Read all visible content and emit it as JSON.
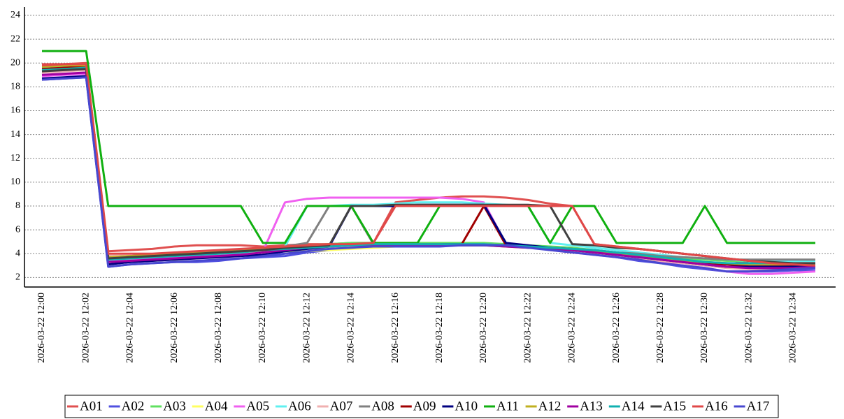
{
  "chart_data": {
    "type": "line",
    "categories": [
      "2026-03-22 12:00",
      null,
      "2026-03-22 12:02",
      null,
      "2026-03-22 12:04",
      null,
      "2026-03-22 12:06",
      null,
      "2026-03-22 12:08",
      null,
      "2026-03-22 12:10",
      null,
      "2026-03-22 12:12",
      null,
      "2026-03-22 12:14",
      null,
      "2026-03-22 12:16",
      null,
      "2026-03-22 12:18",
      null,
      "2026-03-22 12:20",
      null,
      "2026-03-22 12:22",
      null,
      "2026-03-22 12:24",
      null,
      "2026-03-22 12:26",
      null,
      "2026-03-22 12:28",
      null,
      "2026-03-22 12:30",
      null,
      "2026-03-22 12:32",
      null,
      "2026-03-22 12:34",
      null
    ],
    "ylim": [
      1.2,
      24.7
    ],
    "yticks": [
      2,
      4,
      6,
      8,
      10,
      12,
      14,
      16,
      18,
      20,
      22,
      24
    ],
    "grid": true,
    "series": [
      {
        "name": "A01",
        "color": "#e05050",
        "values": [
          19.9,
          19.9,
          20.0,
          4.2,
          4.3,
          4.4,
          4.6,
          4.7,
          4.7,
          4.7,
          4.6,
          4.7,
          4.8,
          4.8,
          4.9,
          4.9,
          8.3,
          8.5,
          8.7,
          8.8,
          8.8,
          8.7,
          8.5,
          8.2,
          8.0,
          4.8,
          4.6,
          4.4,
          4.2,
          4.0,
          3.8,
          3.5,
          3.2,
          3.1,
          3.1,
          3.1
        ]
      },
      {
        "name": "A02",
        "color": "#5050e0",
        "values": [
          18.6,
          18.7,
          18.8,
          2.9,
          3.1,
          3.2,
          3.3,
          3.3,
          3.4,
          3.6,
          3.7,
          3.8,
          4.1,
          4.3,
          4.5,
          4.6,
          4.6,
          4.6,
          4.7,
          4.7,
          4.7,
          4.7,
          4.6,
          4.4,
          4.2,
          4.0,
          3.7,
          3.4,
          3.2,
          2.9,
          2.7,
          2.5,
          2.5,
          2.5,
          2.6,
          2.6
        ]
      },
      {
        "name": "A03",
        "color": "#60e060",
        "values": [
          19.6,
          19.7,
          19.8,
          3.7,
          3.8,
          3.9,
          4.0,
          4.1,
          4.2,
          4.3,
          4.4,
          4.6,
          4.7,
          4.8,
          4.9,
          4.9,
          4.9,
          4.9,
          4.9,
          4.9,
          4.9,
          4.8,
          4.7,
          4.6,
          4.5,
          4.3,
          4.1,
          3.9,
          3.8,
          3.6,
          3.5,
          3.4,
          3.4,
          3.4,
          3.4,
          3.4
        ]
      },
      {
        "name": "A04",
        "color": "#ffff60",
        "values": [
          19.5,
          19.6,
          19.7,
          3.3,
          3.4,
          3.5,
          3.5,
          3.6,
          3.8,
          4.0,
          4.1,
          4.2,
          4.2,
          4.3,
          4.4,
          4.5,
          4.6,
          4.7,
          4.7,
          4.8,
          4.8,
          4.7,
          4.6,
          4.5,
          4.4,
          4.2,
          4.0,
          3.8,
          3.6,
          3.4,
          3.2,
          3.1,
          3.0,
          3.0,
          3.0,
          3.0
        ]
      },
      {
        "name": "A05",
        "color": "#f060f0",
        "values": [
          18.9,
          19.0,
          19.1,
          3.4,
          3.5,
          3.6,
          3.7,
          3.8,
          3.9,
          4.0,
          4.2,
          8.3,
          8.6,
          8.7,
          8.7,
          8.7,
          8.7,
          8.7,
          8.7,
          8.6,
          8.3,
          4.8,
          4.6,
          4.3,
          4.1,
          3.9,
          3.7,
          3.5,
          3.3,
          3.0,
          2.8,
          2.5,
          2.3,
          2.3,
          2.4,
          2.5
        ]
      },
      {
        "name": "A06",
        "color": "#60f0f0",
        "values": [
          19.3,
          19.4,
          19.5,
          3.5,
          3.6,
          3.7,
          3.8,
          3.9,
          4.0,
          4.1,
          4.3,
          4.6,
          8.0,
          8.0,
          8.1,
          8.1,
          8.2,
          8.3,
          8.3,
          8.3,
          8.2,
          8.1,
          8.0,
          4.9,
          4.7,
          4.5,
          4.3,
          4.1,
          3.9,
          3.7,
          3.6,
          3.5,
          3.4,
          3.4,
          3.4,
          3.4
        ]
      },
      {
        "name": "A07",
        "color": "#f0b0b0",
        "values": [
          19.2,
          19.3,
          19.4,
          3.8,
          3.8,
          3.9,
          3.9,
          3.9,
          4.0,
          4.1,
          4.2,
          4.3,
          4.4,
          4.5,
          4.6,
          4.7,
          4.7,
          4.7,
          4.7,
          4.8,
          4.8,
          4.7,
          4.6,
          4.4,
          4.2,
          4.0,
          3.8,
          3.6,
          3.4,
          3.2,
          3.0,
          2.8,
          2.7,
          2.7,
          2.8,
          2.9
        ]
      },
      {
        "name": "A08",
        "color": "#808080",
        "values": [
          19.4,
          19.5,
          19.6,
          3.7,
          3.8,
          3.9,
          4.0,
          4.1,
          4.2,
          4.3,
          4.4,
          4.6,
          4.9,
          8.0,
          8.0,
          4.8,
          4.8,
          4.8,
          4.8,
          4.8,
          4.8,
          4.7,
          4.6,
          4.5,
          4.4,
          4.3,
          4.1,
          4.0,
          3.8,
          3.7,
          3.6,
          3.5,
          3.5,
          3.5,
          3.5,
          3.5
        ]
      },
      {
        "name": "A09",
        "color": "#a00000",
        "values": [
          19.5,
          19.6,
          19.7,
          3.6,
          3.7,
          3.8,
          3.9,
          4.0,
          4.1,
          4.2,
          4.3,
          4.5,
          4.6,
          4.7,
          4.8,
          4.8,
          4.8,
          4.8,
          4.8,
          4.8,
          8.0,
          4.7,
          4.6,
          4.5,
          4.4,
          4.2,
          4.0,
          3.8,
          3.6,
          3.4,
          3.2,
          3.1,
          3.0,
          3.0,
          3.0,
          3.0
        ]
      },
      {
        "name": "A10",
        "color": "#000080",
        "values": [
          18.7,
          18.8,
          18.9,
          3.1,
          3.3,
          3.4,
          3.5,
          3.6,
          3.7,
          3.8,
          3.9,
          4.2,
          4.4,
          4.6,
          8.0,
          8.0,
          8.0,
          8.1,
          8.1,
          8.1,
          8.1,
          4.9,
          4.7,
          4.5,
          4.3,
          4.1,
          3.9,
          3.7,
          3.5,
          3.3,
          3.1,
          2.9,
          2.9,
          2.9,
          2.9,
          3.0
        ]
      },
      {
        "name": "A11",
        "color": "#10b010",
        "values": [
          21,
          21,
          21,
          8,
          8,
          8,
          8,
          8,
          8,
          8,
          4.9,
          4.9,
          8,
          8,
          8,
          4.9,
          4.9,
          4.9,
          8,
          8,
          8,
          8,
          8,
          4.9,
          8,
          8,
          4.9,
          4.9,
          4.9,
          4.9,
          8,
          4.9,
          4.9,
          4.9,
          4.9,
          4.9
        ]
      },
      {
        "name": "A12",
        "color": "#c0b020",
        "values": [
          19.7,
          19.8,
          19.8,
          3.7,
          3.8,
          3.9,
          4.0,
          4.1,
          4.2,
          4.3,
          4.4,
          4.5,
          4.6,
          4.7,
          4.8,
          4.8,
          4.8,
          4.8,
          4.8,
          4.7,
          4.7,
          4.6,
          4.5,
          4.4,
          4.3,
          4.2,
          4.0,
          3.8,
          3.6,
          3.4,
          3.3,
          3.2,
          3.1,
          3.1,
          3.1,
          3.1
        ]
      },
      {
        "name": "A13",
        "color": "#a000a0",
        "values": [
          19.0,
          19.1,
          19.2,
          3.3,
          3.4,
          3.5,
          3.6,
          3.7,
          3.8,
          3.9,
          4.1,
          4.3,
          4.5,
          4.6,
          4.7,
          4.7,
          4.7,
          4.7,
          4.7,
          4.7,
          4.7,
          4.6,
          4.5,
          4.4,
          4.3,
          4.1,
          3.9,
          3.7,
          3.5,
          3.3,
          3.1,
          2.9,
          2.8,
          2.8,
          2.8,
          2.9
        ]
      },
      {
        "name": "A14",
        "color": "#10b0b0",
        "values": [
          19.4,
          19.5,
          19.6,
          3.5,
          3.6,
          3.7,
          3.8,
          3.9,
          4.0,
          4.1,
          4.3,
          4.4,
          4.5,
          4.6,
          4.7,
          4.8,
          4.8,
          4.8,
          4.8,
          4.8,
          4.8,
          4.7,
          4.6,
          4.5,
          4.4,
          4.3,
          4.1,
          3.9,
          3.7,
          3.5,
          3.3,
          3.2,
          3.2,
          3.2,
          3.2,
          3.2
        ]
      },
      {
        "name": "A15",
        "color": "#404040",
        "values": [
          19.3,
          19.4,
          19.5,
          3.6,
          3.7,
          3.8,
          3.9,
          4.0,
          4.1,
          4.2,
          4.3,
          4.5,
          4.6,
          4.7,
          8.0,
          8.0,
          8.1,
          8.1,
          8.1,
          8.1,
          8.1,
          8.1,
          8.1,
          8.0,
          4.8,
          4.7,
          4.5,
          4.4,
          4.2,
          4.0,
          3.8,
          3.6,
          3.4,
          3.3,
          3.2,
          3.2
        ]
      },
      {
        "name": "A16",
        "color": "#e04848",
        "values": [
          19.8,
          19.9,
          19.9,
          4.0,
          4.0,
          4.0,
          4.1,
          4.2,
          4.3,
          4.4,
          4.5,
          4.6,
          4.7,
          4.8,
          4.8,
          4.9,
          8.0,
          8.0,
          8.0,
          8.0,
          8.0,
          8.0,
          8.0,
          8.0,
          8.0,
          4.8,
          4.6,
          4.4,
          4.2,
          4.0,
          3.8,
          3.6,
          3.4,
          3.2,
          3.1,
          3.0
        ]
      },
      {
        "name": "A17",
        "color": "#4848d0",
        "values": [
          18.6,
          18.7,
          18.8,
          2.9,
          3.1,
          3.2,
          3.3,
          3.4,
          3.5,
          3.6,
          3.8,
          4.0,
          4.2,
          4.4,
          4.5,
          4.6,
          4.6,
          4.6,
          4.6,
          4.7,
          4.7,
          4.7,
          4.5,
          4.3,
          4.1,
          3.9,
          3.7,
          3.5,
          3.2,
          3.0,
          2.8,
          2.5,
          2.5,
          2.6,
          2.7,
          2.8
        ]
      }
    ]
  }
}
